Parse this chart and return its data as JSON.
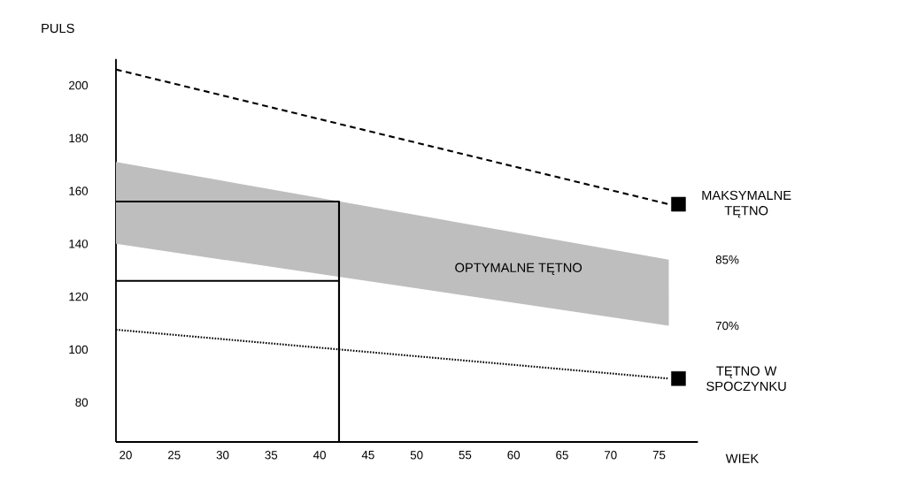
{
  "chart_data": {
    "type": "line",
    "xlabel": "WIEK",
    "ylabel": "PULS",
    "xlim": [
      19,
      79
    ],
    "ylim": [
      65,
      210
    ],
    "xticks": [
      20,
      25,
      30,
      35,
      40,
      45,
      50,
      55,
      60,
      65,
      70,
      75
    ],
    "yticks": [
      80,
      100,
      120,
      140,
      160,
      180,
      200
    ],
    "series": [
      {
        "color": "#bebebe",
        "x": [
          19,
          76
        ],
        "values": [
          null,
          null
        ],
        "lower": [
          140,
          109
        ],
        "upper": [
          171,
          134
        ]
      },
      {
        "color": "#000000",
        "line_style": "dashed",
        "x": [
          19,
          76
        ],
        "values": [
          206,
          155
        ]
      },
      {
        "color": "#000000",
        "line_style": "dotted",
        "x": [
          19,
          76
        ],
        "values": [
          107.5,
          89
        ]
      },
      {
        "color": "#000000",
        "line_style": "solid",
        "x": [
          19,
          42,
          42
        ],
        "values": [
          156,
          156,
          65
        ]
      },
      {
        "color": "#000000",
        "line_style": "solid",
        "x": [
          19,
          42
        ],
        "values": [
          126,
          126
        ]
      },
      {
        "type": "scatter",
        "name": "MAKSYMALNE TĘTNO",
        "color": "#000000",
        "marker": "square",
        "x": [
          77
        ],
        "values": [
          155
        ]
      },
      {
        "type": "scatter",
        "name": "TĘTNO W SPOCZYNKU",
        "color": "#000000",
        "marker": "square",
        "x": [
          77
        ],
        "values": [
          89
        ]
      }
    ],
    "annotations": [
      "OPTYMALNE TĘTNO",
      "85%",
      "70%"
    ]
  }
}
